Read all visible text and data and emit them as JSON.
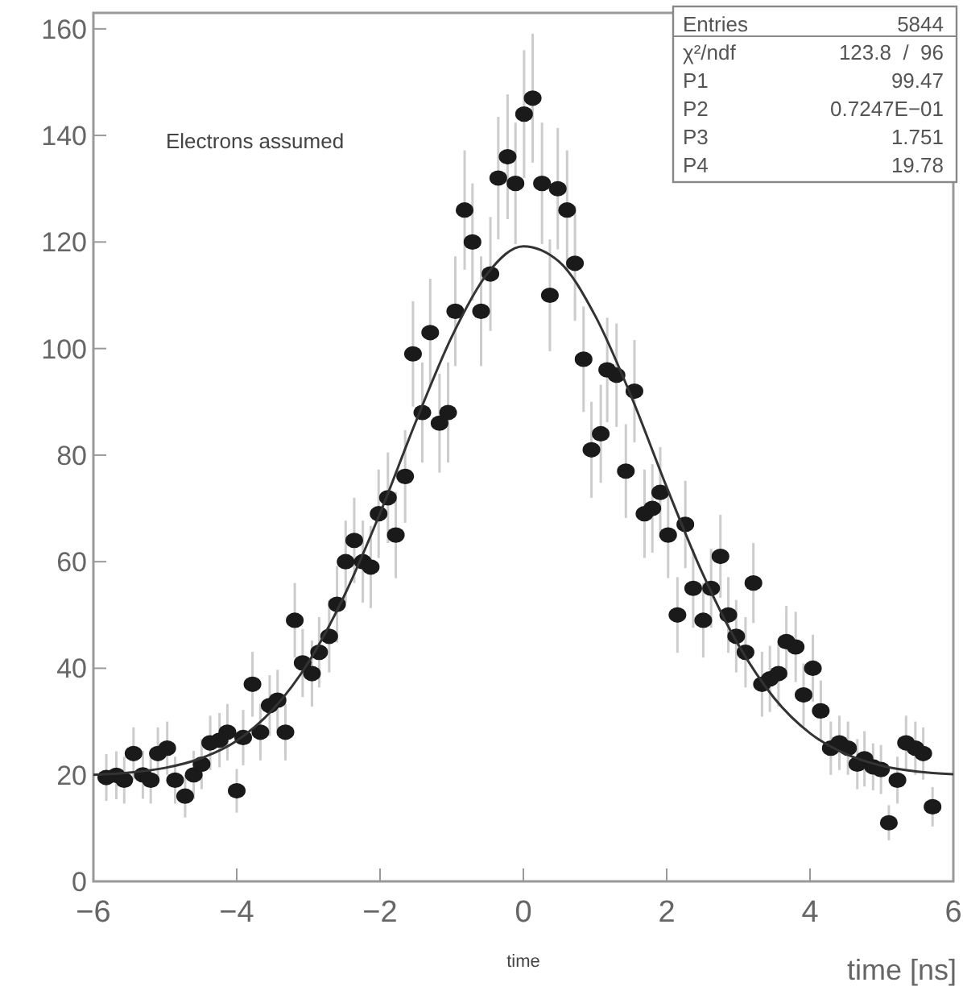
{
  "chart_data": {
    "type": "scatter",
    "xlabel": "time [ns]",
    "xlim": [
      -6,
      6
    ],
    "xticks": [
      -6,
      -4,
      -2,
      0,
      2,
      4,
      6
    ],
    "ylim": [
      0,
      163
    ],
    "yticks": [
      0,
      20,
      40,
      60,
      80,
      100,
      120,
      140,
      160
    ],
    "grid": false,
    "marker": "circle",
    "annotations": [
      "Electrons assumed",
      "time",
      "Entries",
      "5844",
      "χ²/ndf",
      "123.8  /  96",
      "P1",
      "99.47",
      "P2",
      "0.7247E−01",
      "P3",
      "1.751",
      "P4",
      "19.78"
    ],
    "series": [
      {
        "color": "#1a1a1a",
        "x": [
          -5.82,
          -5.68,
          -5.57,
          -5.44,
          -5.31,
          -5.2,
          -5.1,
          -4.97,
          -4.86,
          -4.72,
          -4.6,
          -4.49,
          -4.37,
          -4.24,
          -4.13,
          -4.0,
          -3.91,
          -3.78,
          -3.67,
          -3.54,
          -3.43,
          -3.32,
          -3.19,
          -3.08,
          -2.95,
          -2.85,
          -2.71,
          -2.6,
          -2.48,
          -2.36,
          -2.24,
          -2.13,
          -2.02,
          -1.89,
          -1.78,
          -1.65,
          -1.54,
          -1.41,
          -1.3,
          -1.17,
          -1.05,
          -0.95,
          -0.82,
          -0.71,
          -0.59,
          -0.46,
          -0.35,
          -0.22,
          -0.11,
          0.01,
          0.13,
          0.26,
          0.37,
          0.48,
          0.61,
          0.72,
          0.84,
          0.95,
          1.08,
          1.17,
          1.3,
          1.43,
          1.55,
          1.69,
          1.8,
          1.91,
          2.02,
          2.15,
          2.26,
          2.37,
          2.51,
          2.62,
          2.75,
          2.86,
          2.97,
          3.1,
          3.21,
          3.33,
          3.44,
          3.56,
          3.67,
          3.8,
          3.91,
          4.04,
          4.15,
          4.29,
          4.41,
          4.53,
          4.66,
          4.76,
          4.88,
          4.99,
          5.1,
          5.22,
          5.34,
          5.47,
          5.58,
          5.71
        ],
        "values": [
          19.5,
          19.9,
          19,
          24,
          20,
          19,
          24,
          25,
          19,
          16,
          20,
          22,
          26,
          26.5,
          28,
          17,
          27,
          37,
          28,
          33,
          34,
          28,
          49,
          41,
          39,
          43,
          46,
          52,
          60,
          64,
          60,
          59,
          69,
          72,
          65,
          76,
          99,
          88,
          103,
          86,
          88,
          107,
          126,
          120,
          107,
          114,
          132,
          136,
          131,
          144,
          147,
          131,
          110,
          130,
          126,
          116,
          98,
          81,
          84,
          96,
          95,
          77,
          92,
          69,
          70,
          73,
          65,
          50,
          67,
          55,
          49,
          55,
          61,
          50,
          46,
          43,
          56,
          37,
          38,
          39,
          45,
          44,
          35,
          40,
          32,
          25,
          26,
          25,
          22,
          23,
          21.5,
          21,
          11,
          19,
          26,
          25,
          24,
          14
        ],
        "errors": [
          4.4,
          4.5,
          4.4,
          4.9,
          4.5,
          4.4,
          4.9,
          5,
          4.4,
          4,
          4.5,
          4.7,
          5.1,
          5.1,
          5.3,
          4.1,
          5.2,
          6.1,
          5.3,
          5.7,
          5.7,
          5.3,
          7,
          6.4,
          6.2,
          6.6,
          6.8,
          7.2,
          7.7,
          8,
          7.7,
          7.7,
          8.3,
          8.5,
          8.1,
          8.7,
          9.9,
          9.4,
          10.1,
          9.3,
          9.4,
          10.3,
          11.2,
          11,
          10.3,
          10.7,
          11.5,
          11.7,
          11.4,
          12,
          12.1,
          11.4,
          10.5,
          11.4,
          11.2,
          10.8,
          9.9,
          9,
          9.2,
          9.8,
          9.7,
          8.8,
          9.6,
          8.3,
          8.3,
          8.5,
          8.1,
          7.1,
          8.2,
          7.4,
          7,
          7.4,
          7.8,
          7.1,
          6.8,
          6.6,
          7.5,
          6.1,
          6.2,
          6.2,
          6.7,
          6.6,
          5.9,
          6.3,
          5.7,
          5,
          5.1,
          5,
          4.7,
          5.2,
          4.4,
          4.6,
          3.3,
          4.4,
          5.1,
          5,
          4.9,
          3.7
        ]
      },
      {
        "type": "line",
        "color": "#333333",
        "line_style": "solid",
        "marker": "none",
        "x": [
          -6,
          -5.5,
          -5,
          -4.5,
          -4,
          -3.5,
          -3,
          -2.5,
          -2,
          -1.5,
          -1,
          -0.5,
          0,
          0.5,
          1,
          1.5,
          2,
          2.5,
          3,
          3.5,
          4,
          4.5,
          5,
          5.5,
          6
        ],
        "values": [
          20,
          20.4,
          21.3,
          23.1,
          26.4,
          32.2,
          41.1,
          53.6,
          69.1,
          86.3,
          102.2,
          114.1,
          119.2,
          116.3,
          106.2,
          91.2,
          74,
          57.8,
          44.4,
          34.4,
          27.8,
          23.9,
          21.7,
          20.6,
          20.1
        ]
      }
    ]
  }
}
